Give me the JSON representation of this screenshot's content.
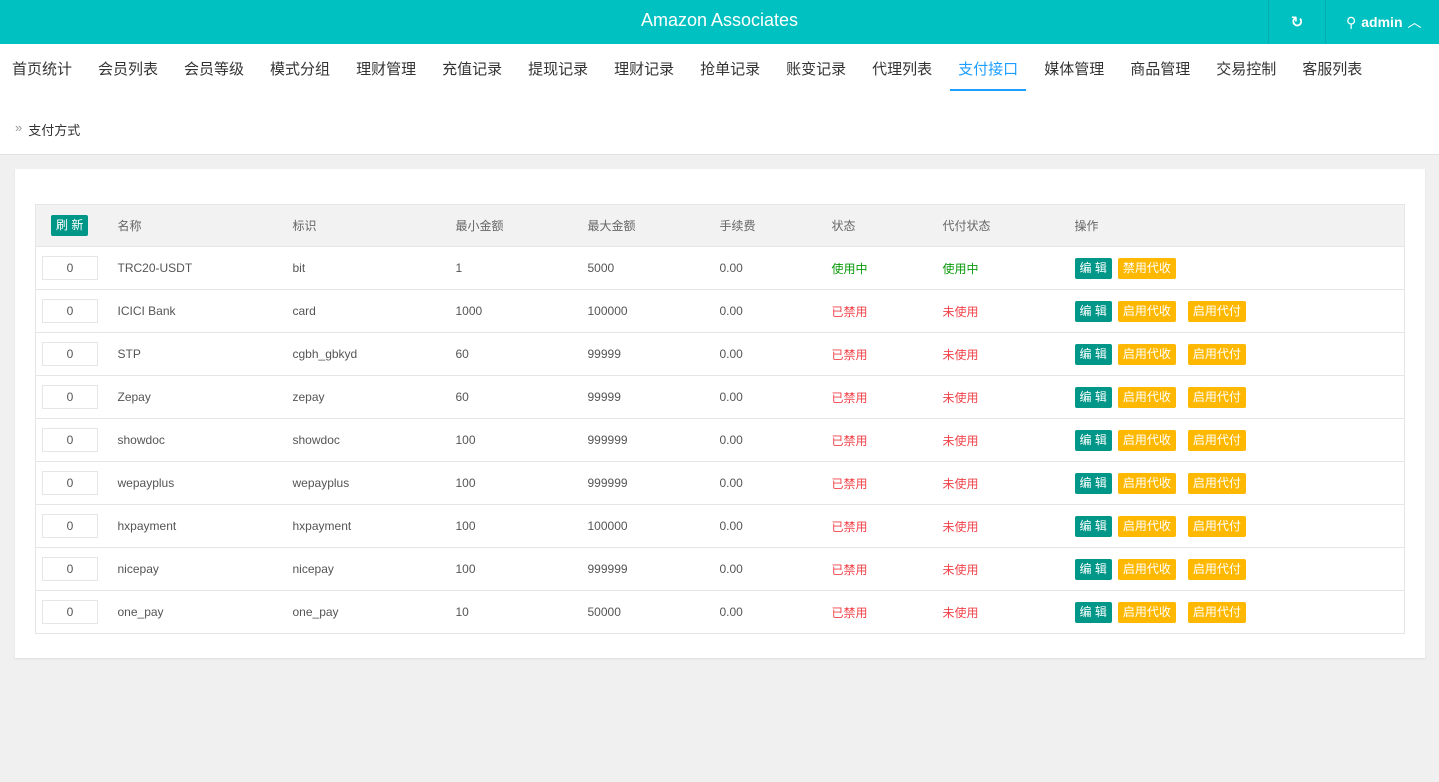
{
  "header": {
    "title": "Amazon Associates",
    "user": "admin",
    "refresh_icon": "refresh-icon",
    "user_icon": "user-icon"
  },
  "nav": {
    "tabs": [
      "首页统计",
      "会员列表",
      "会员等级",
      "模式分组",
      "理财管理",
      "充值记录",
      "提现记录",
      "理财记录",
      "抢单记录",
      "账变记录",
      "代理列表",
      "支付接口",
      "媒体管理",
      "商品管理",
      "交易控制",
      "客服列表"
    ],
    "active": "支付接口"
  },
  "breadcrumb": "支付方式",
  "table": {
    "refresh_label": "刷 新",
    "headers": [
      "名称",
      "标识",
      "最小金额",
      "最大金额",
      "手续费",
      "状态",
      "代付状态",
      "操作"
    ],
    "edit_label": "编 辑",
    "rows": [
      {
        "sort": "0",
        "name": "TRC20-USDT",
        "code": "bit",
        "min": "1",
        "max": "5000",
        "fee": "0.00",
        "status": "使用中",
        "payout": "使用中",
        "actions": [
          "禁用代收"
        ]
      },
      {
        "sort": "0",
        "name": "ICICI Bank",
        "code": "card",
        "min": "1000",
        "max": "100000",
        "fee": "0.00",
        "status": "已禁用",
        "payout": "未使用",
        "actions": [
          "启用代收",
          "启用代付"
        ]
      },
      {
        "sort": "0",
        "name": "STP",
        "code": "cgbh_gbkyd",
        "min": "60",
        "max": "99999",
        "fee": "0.00",
        "status": "已禁用",
        "payout": "未使用",
        "actions": [
          "启用代收",
          "启用代付"
        ]
      },
      {
        "sort": "0",
        "name": "Zepay",
        "code": "zepay",
        "min": "60",
        "max": "99999",
        "fee": "0.00",
        "status": "已禁用",
        "payout": "未使用",
        "actions": [
          "启用代收",
          "启用代付"
        ]
      },
      {
        "sort": "0",
        "name": "showdoc",
        "code": "showdoc",
        "min": "100",
        "max": "999999",
        "fee": "0.00",
        "status": "已禁用",
        "payout": "未使用",
        "actions": [
          "启用代收",
          "启用代付"
        ]
      },
      {
        "sort": "0",
        "name": "wepayplus",
        "code": "wepayplus",
        "min": "100",
        "max": "999999",
        "fee": "0.00",
        "status": "已禁用",
        "payout": "未使用",
        "actions": [
          "启用代收",
          "启用代付"
        ]
      },
      {
        "sort": "0",
        "name": "hxpayment",
        "code": "hxpayment",
        "min": "100",
        "max": "100000",
        "fee": "0.00",
        "status": "已禁用",
        "payout": "未使用",
        "actions": [
          "启用代收",
          "启用代付"
        ]
      },
      {
        "sort": "0",
        "name": "nicepay",
        "code": "nicepay",
        "min": "100",
        "max": "999999",
        "fee": "0.00",
        "status": "已禁用",
        "payout": "未使用",
        "actions": [
          "启用代收",
          "启用代付"
        ]
      },
      {
        "sort": "0",
        "name": "one_pay",
        "code": "one_pay",
        "min": "10",
        "max": "50000",
        "fee": "0.00",
        "status": "已禁用",
        "payout": "未使用",
        "actions": [
          "启用代收",
          "启用代付"
        ]
      }
    ]
  },
  "colors": {
    "header": "#00c1c1",
    "active_tab": "#1e9fff",
    "edit": "#009688",
    "toggle": "#ffb800",
    "enabled": "#0a9a0a",
    "disabled": "#f0434a"
  }
}
